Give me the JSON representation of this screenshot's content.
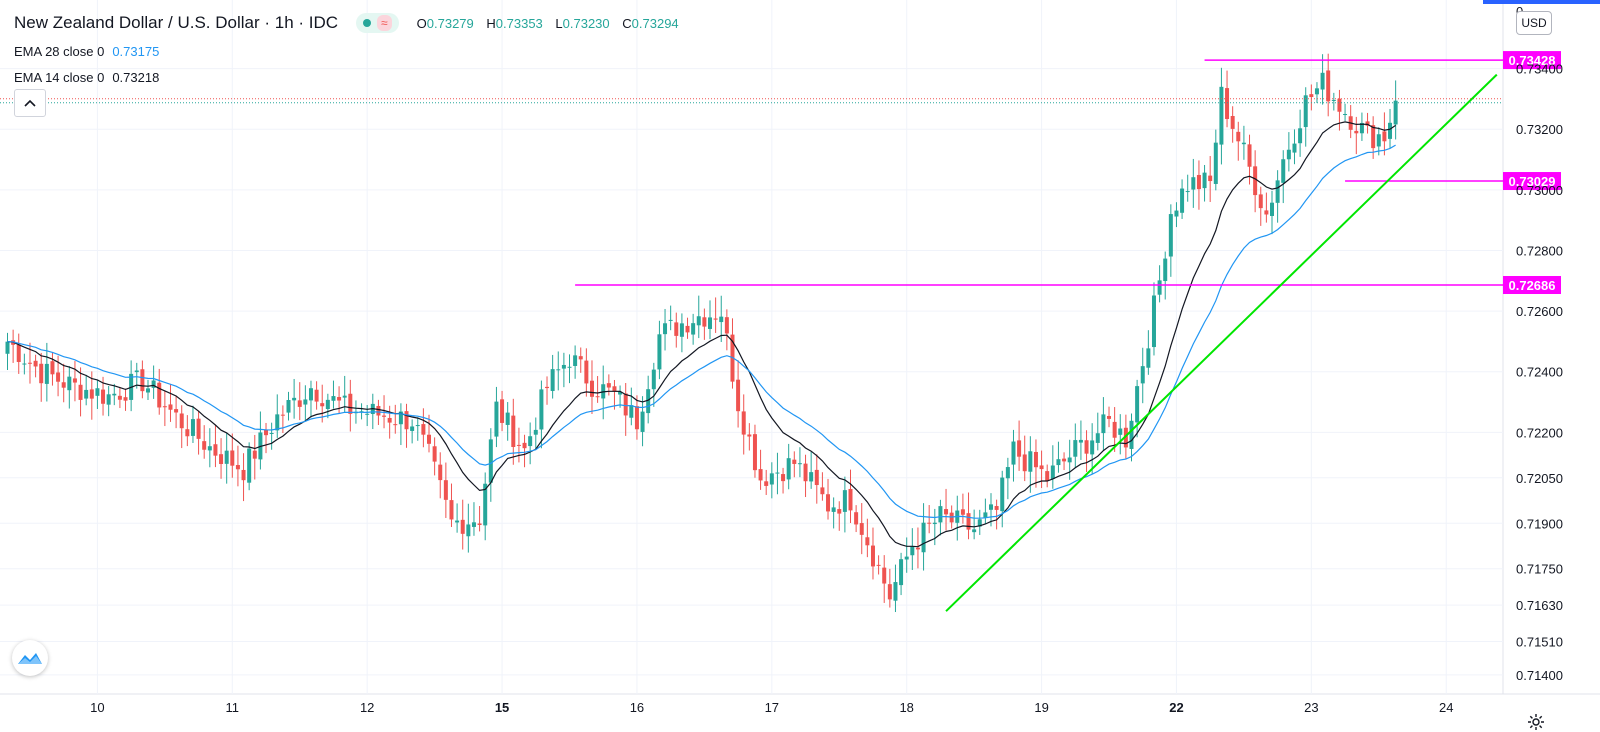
{
  "header": {
    "symbol_title": "New Zealand Dollar / U.S. Dollar · 1h · IDC",
    "ohlc": {
      "o_label": "O",
      "o": "0.73279",
      "h_label": "H",
      "h": "0.73353",
      "l_label": "L",
      "l": "0.73230",
      "c_label": "C",
      "c": "0.73294"
    },
    "indicators": [
      {
        "name": "EMA 28 close 0",
        "value": "0.73175"
      },
      {
        "name": "EMA 14 close 0",
        "value": "0.73218"
      }
    ]
  },
  "currency_badge": "USD",
  "colors": {
    "up": "#26a69a",
    "down": "#ef5350",
    "ema_fast": "#131722",
    "ema_slow": "#2196f3",
    "level": "#ff00ff",
    "trendline": "#00e600"
  },
  "icons": {
    "collapse": "chevron-up-icon",
    "logo": "tradingview-logo-icon",
    "settings": "gear-icon"
  },
  "chart_data": {
    "type": "candlestick",
    "title": "New Zealand Dollar / U.S. Dollar, 1h",
    "ylim": [
      0.7135,
      0.7358
    ],
    "y_ticks": [
      "0.73400",
      "0.73200",
      "0.73000",
      "0.72800",
      "0.72600",
      "0.72400",
      "0.72200",
      "0.72050",
      "0.71900",
      "0.71750",
      "0.71630",
      "0.71510",
      "0.71400"
    ],
    "y_tick_values": [
      0.734,
      0.732,
      0.73,
      0.728,
      0.726,
      0.724,
      0.722,
      0.7205,
      0.719,
      0.7175,
      0.7163,
      0.7151,
      0.714
    ],
    "top_partial_tick": "0",
    "x_ticks": [
      {
        "label": "10",
        "bar": 16
      },
      {
        "label": "11",
        "bar": 40
      },
      {
        "label": "12",
        "bar": 64
      },
      {
        "label": "15",
        "bar": 88
      },
      {
        "label": "16",
        "bar": 112
      },
      {
        "label": "17",
        "bar": 136
      },
      {
        "label": "18",
        "bar": 160
      },
      {
        "label": "19",
        "bar": 184
      },
      {
        "label": "22",
        "bar": 208
      },
      {
        "label": "23",
        "bar": 232
      },
      {
        "label": "24",
        "bar": 256
      }
    ],
    "x_tick_bold": [
      "15",
      "22"
    ],
    "candle_anchors": [
      [
        0,
        0.725
      ],
      [
        6,
        0.724
      ],
      [
        12,
        0.7235
      ],
      [
        18,
        0.7232
      ],
      [
        24,
        0.7237
      ],
      [
        30,
        0.7225
      ],
      [
        36,
        0.7215
      ],
      [
        42,
        0.7208
      ],
      [
        48,
        0.7225
      ],
      [
        54,
        0.7235
      ],
      [
        60,
        0.7228
      ],
      [
        66,
        0.7226
      ],
      [
        72,
        0.7224
      ],
      [
        75,
        0.7212
      ],
      [
        79,
        0.719
      ],
      [
        84,
        0.7192
      ],
      [
        87,
        0.7228
      ],
      [
        92,
        0.7214
      ],
      [
        96,
        0.7235
      ],
      [
        100,
        0.7245
      ],
      [
        104,
        0.7236
      ],
      [
        108,
        0.7232
      ],
      [
        112,
        0.7224
      ],
      [
        116,
        0.7252
      ],
      [
        122,
        0.7258
      ],
      [
        127,
        0.726
      ],
      [
        130,
        0.723
      ],
      [
        134,
        0.7205
      ],
      [
        140,
        0.721
      ],
      [
        146,
        0.7196
      ],
      [
        150,
        0.7198
      ],
      [
        154,
        0.718
      ],
      [
        157,
        0.7166
      ],
      [
        161,
        0.7183
      ],
      [
        166,
        0.7192
      ],
      [
        172,
        0.7188
      ],
      [
        176,
        0.7194
      ],
      [
        179,
        0.7214
      ],
      [
        185,
        0.7205
      ],
      [
        190,
        0.7214
      ],
      [
        196,
        0.7223
      ],
      [
        199,
        0.7218
      ],
      [
        203,
        0.7252
      ],
      [
        205,
        0.727
      ],
      [
        207,
        0.7293
      ],
      [
        210,
        0.7302
      ],
      [
        214,
        0.7302
      ],
      [
        216,
        0.7331
      ],
      [
        220,
        0.7312
      ],
      [
        224,
        0.7292
      ],
      [
        227,
        0.731
      ],
      [
        231,
        0.7329
      ],
      [
        234,
        0.7335
      ],
      [
        238,
        0.7326
      ],
      [
        242,
        0.7318
      ],
      [
        245,
        0.7318
      ],
      [
        247,
        0.7329
      ]
    ],
    "levels": [
      {
        "label": "0.73428",
        "value": 0.73428,
        "start_bar": 213
      },
      {
        "label": "0.73029",
        "value": 0.73029,
        "start_bar": 238
      },
      {
        "label": "0.72686",
        "value": 0.72686,
        "start_bar": 101
      }
    ],
    "trendline": {
      "from": {
        "bar": 167,
        "value": 0.7161
      },
      "to": {
        "bar": 265,
        "value": 0.7338
      }
    },
    "current_price_value": 0.73294,
    "ema_periods": [
      14,
      28
    ]
  }
}
